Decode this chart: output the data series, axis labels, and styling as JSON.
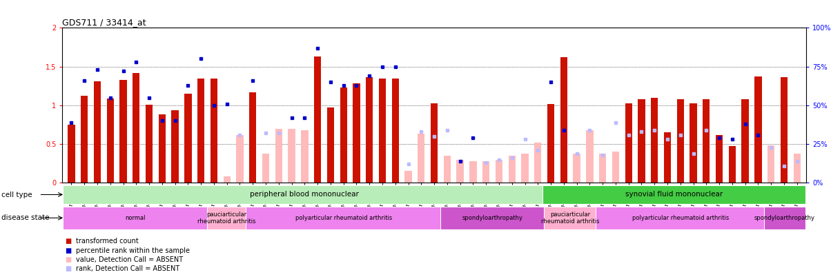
{
  "title": "GDS711 / 33414_at",
  "samples": [
    "GSM23185",
    "GSM23186",
    "GSM23187",
    "GSM23188",
    "GSM23189",
    "GSM23190",
    "GSM23191",
    "GSM23192",
    "GSM23193",
    "GSM23194",
    "GSM23195",
    "GSM23159",
    "GSM23160",
    "GSM23161",
    "GSM23162",
    "GSM23163",
    "GSM23164",
    "GSM23165",
    "GSM23166",
    "GSM23167",
    "GSM23168",
    "GSM23169",
    "GSM23170",
    "GSM23171",
    "GSM23172",
    "GSM23173",
    "GSM23174",
    "GSM23175",
    "GSM23176",
    "GSM23177",
    "GSM23178",
    "GSM23179",
    "GSM23180",
    "GSM23181",
    "GSM23182",
    "GSM23183",
    "GSM23184",
    "GSM23196",
    "GSM23197",
    "GSM23198",
    "GSM23199",
    "GSM23200",
    "GSM23201",
    "GSM23202",
    "GSM23203",
    "GSM23204",
    "GSM23205",
    "GSM23206",
    "GSM23207",
    "GSM23208",
    "GSM23209",
    "GSM23210",
    "GSM23211",
    "GSM23212",
    "GSM23213",
    "GSM23214",
    "GSM23215"
  ],
  "red_values": [
    0.75,
    1.12,
    1.31,
    1.09,
    1.33,
    1.42,
    1.01,
    0.88,
    0.94,
    1.15,
    1.35,
    1.35,
    0.08,
    0.62,
    1.17,
    0.38,
    0.7,
    0.7,
    0.68,
    1.63,
    0.97,
    1.23,
    1.28,
    1.36,
    1.35,
    1.35,
    0.15,
    0.63,
    1.03,
    0.35,
    0.3,
    0.28,
    0.28,
    0.3,
    0.35,
    0.38,
    0.52,
    1.02,
    1.62,
    0.38,
    0.68,
    0.38,
    0.4,
    1.03,
    1.08,
    1.1,
    0.65,
    1.08,
    1.03,
    1.08,
    0.62,
    0.47,
    1.08,
    1.37,
    0.48,
    1.36,
    0.38
  ],
  "blue_values_pct": [
    39,
    66,
    73,
    55,
    72,
    78,
    55,
    40,
    40,
    63,
    80,
    50,
    51,
    31,
    66,
    32,
    32,
    42,
    42,
    87,
    65,
    63,
    63,
    69,
    75,
    75,
    12,
    33,
    30,
    34,
    14,
    29,
    13,
    15,
    16,
    28,
    21,
    65,
    34,
    19,
    34,
    18,
    39,
    31,
    33,
    34,
    28,
    31,
    19,
    34,
    29,
    28,
    38,
    31,
    23,
    11,
    14
  ],
  "absent_red": [
    false,
    false,
    false,
    false,
    false,
    false,
    false,
    false,
    false,
    false,
    false,
    false,
    true,
    true,
    false,
    true,
    true,
    true,
    true,
    false,
    false,
    false,
    false,
    false,
    false,
    false,
    true,
    true,
    false,
    true,
    true,
    true,
    true,
    true,
    true,
    true,
    true,
    false,
    false,
    true,
    true,
    true,
    true,
    false,
    false,
    false,
    false,
    false,
    false,
    false,
    false,
    false,
    false,
    false,
    true,
    false,
    true
  ],
  "absent_blue": [
    false,
    false,
    false,
    false,
    false,
    false,
    false,
    false,
    false,
    false,
    false,
    false,
    false,
    true,
    false,
    true,
    true,
    false,
    false,
    false,
    false,
    false,
    false,
    false,
    false,
    false,
    true,
    true,
    true,
    true,
    false,
    false,
    true,
    true,
    true,
    true,
    true,
    false,
    false,
    true,
    true,
    true,
    true,
    true,
    true,
    true,
    true,
    true,
    true,
    true,
    false,
    false,
    false,
    false,
    true,
    true,
    true
  ],
  "cell_type_groups": [
    {
      "label": "peripheral blood mononuclear",
      "start": 0,
      "end": 36,
      "color": "#b8ecb8"
    },
    {
      "label": "synovial fluid mononuclear",
      "start": 37,
      "end": 56,
      "color": "#44cc44"
    }
  ],
  "disease_state_groups": [
    {
      "label": "normal",
      "start": 0,
      "end": 10,
      "color": "#ee82ee"
    },
    {
      "label": "pauciarticular\nrheumatoid arthritis",
      "start": 11,
      "end": 13,
      "color": "#ffb0d0"
    },
    {
      "label": "polyarticular rheumatoid arthritis",
      "start": 14,
      "end": 28,
      "color": "#ee82ee"
    },
    {
      "label": "spondyloarthropathy",
      "start": 29,
      "end": 36,
      "color": "#cc55cc"
    },
    {
      "label": "pauciarticular\nrheumatoid arthritis",
      "start": 37,
      "end": 40,
      "color": "#ffb0d0"
    },
    {
      "label": "polyarticular rheumatoid arthritis",
      "start": 41,
      "end": 53,
      "color": "#ee82ee"
    },
    {
      "label": "spondyloarthropathy",
      "start": 54,
      "end": 56,
      "color": "#cc55cc"
    }
  ],
  "red_color": "#cc1100",
  "blue_color": "#0000cc",
  "absent_red_color": "#ffbbbb",
  "absent_blue_color": "#bbbbff"
}
